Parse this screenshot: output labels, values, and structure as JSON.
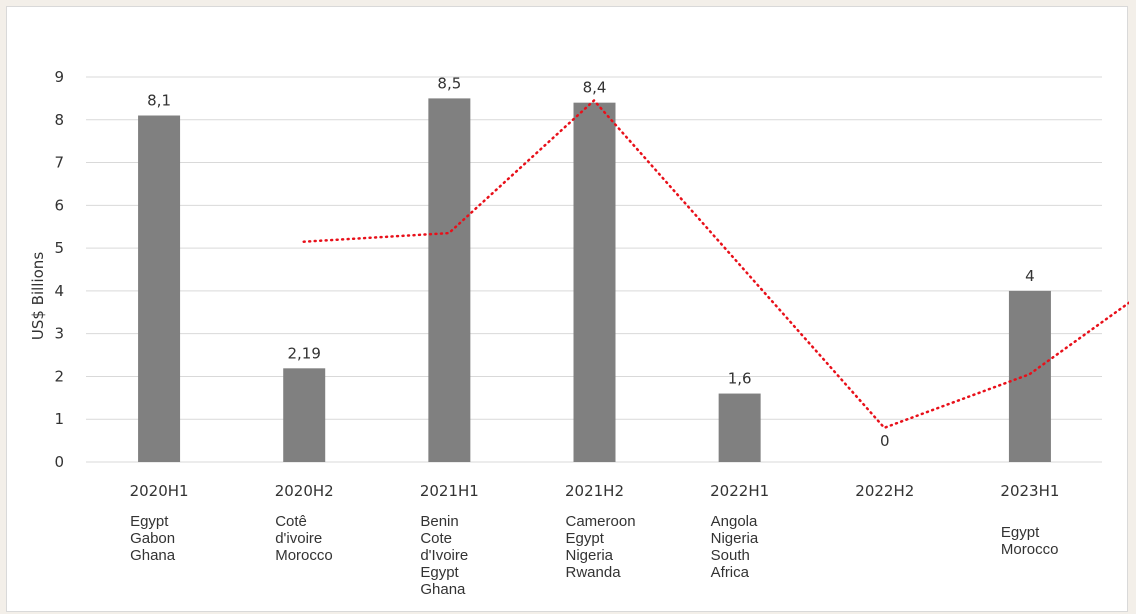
{
  "chart_data": {
    "type": "bar",
    "ylabel": "US$ Billions",
    "ylim": [
      0,
      9
    ],
    "yticks": [
      0,
      1,
      2,
      3,
      4,
      5,
      6,
      7,
      8,
      9
    ],
    "grid": true,
    "categories": [
      "2020H1",
      "2020H2",
      "2021H1",
      "2021H2",
      "2022H1",
      "2022H2",
      "2023H1"
    ],
    "values": [
      8.1,
      2.19,
      8.5,
      8.4,
      1.6,
      0,
      4
    ],
    "data_labels": [
      "8,1",
      "2,19",
      "8,5",
      "8,4",
      "1,6",
      "0",
      "4"
    ],
    "countries": [
      [
        "Egypt",
        "Gabon",
        "Ghana"
      ],
      [
        "Cotê",
        "d'ivoire",
        "Morocco"
      ],
      [
        "Benin",
        "Cote",
        "d'Ivoire",
        "Egypt",
        "Ghana"
      ],
      [
        "Cameroon",
        "Egypt",
        "Nigeria",
        "Rwanda"
      ],
      [
        "Angola",
        "Nigeria",
        "South",
        "Africa"
      ],
      [],
      [
        "Egypt",
        "Morocco"
      ]
    ],
    "trendline": {
      "style": "dotted",
      "points": [
        {
          "x": 1.0,
          "y": 5.15
        },
        {
          "x": 2.0,
          "y": 5.35
        },
        {
          "x": 3.0,
          "y": 8.45
        },
        {
          "x": 5.0,
          "y": 0.8
        },
        {
          "x": 6.0,
          "y": 2.05
        },
        {
          "x": 6.8,
          "y": 4.0
        }
      ]
    },
    "colors": {
      "bar": "#808080",
      "trendline": "#e8101a",
      "grid": "#d9d9d9",
      "axis": "#d9d9d9",
      "background": "#ffffff"
    }
  }
}
